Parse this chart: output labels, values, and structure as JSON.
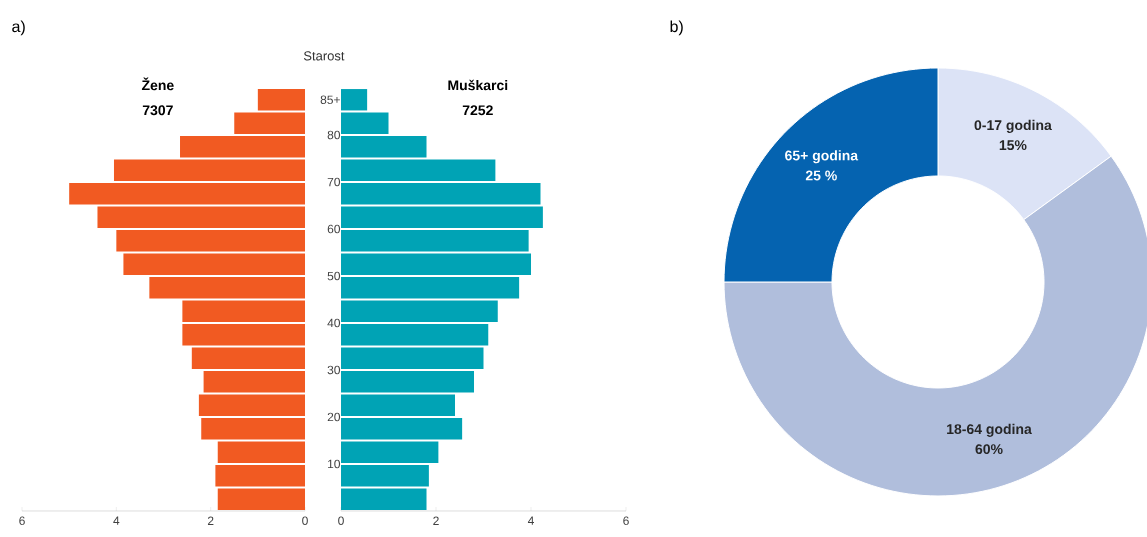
{
  "chart_data": [
    {
      "type": "bar",
      "orientation": "horizontal",
      "title": "a)",
      "x": [
        2.5,
        7.5,
        12.5,
        17.5,
        22.5,
        27.5,
        32.5,
        37.5,
        42.5,
        47.5,
        52.5,
        57.5,
        62.5,
        67.5,
        72.5,
        77.5,
        82.5,
        87.5
      ],
      "series": [
        {
          "name": "Žene",
          "color": "#f15a22",
          "values": [
            1.85,
            1.9,
            1.85,
            2.2,
            2.25,
            2.15,
            2.4,
            2.6,
            2.6,
            3.3,
            3.85,
            4.0,
            4.4,
            5.0,
            4.05,
            2.65,
            1.5,
            1.0
          ]
        }
      ],
      "annotations": [
        "7307"
      ],
      "xlim": [
        6,
        0
      ],
      "xticks": [
        6,
        4,
        2,
        0
      ],
      "ylim": [
        0,
        90
      ],
      "tick_labels": "x"
    },
    {
      "type": "bar",
      "orientation": "horizontal",
      "ylabel": "Starost",
      "x": [
        2.5,
        7.5,
        12.5,
        17.5,
        22.5,
        27.5,
        32.5,
        37.5,
        42.5,
        47.5,
        52.5,
        57.5,
        62.5,
        67.5,
        72.5,
        77.5,
        82.5,
        87.5
      ],
      "series": [
        {
          "name": "Muškarci",
          "color": "#00a3b5",
          "values": [
            1.8,
            1.85,
            2.05,
            2.55,
            2.4,
            2.8,
            3.0,
            3.1,
            3.3,
            3.75,
            4.0,
            3.95,
            4.25,
            4.2,
            3.25,
            1.8,
            1.0,
            0.55
          ]
        }
      ],
      "annotations": [
        "7252"
      ],
      "xlim": [
        0,
        6
      ],
      "xticks": [
        0,
        2,
        4,
        6
      ],
      "ylim": [
        0,
        90
      ],
      "yticks": [
        10,
        20,
        30,
        40,
        50,
        60,
        70,
        80,
        {
          "value": 87.5,
          "label": "85+"
        }
      ]
    },
    {
      "type": "donut",
      "title": "b)",
      "categories": [
        "0-17 godina",
        "18-64 godina",
        "65+ godina"
      ],
      "values": [
        15,
        60,
        25
      ],
      "value_labels": [
        "15%",
        "60%",
        "25 %"
      ],
      "colors": [
        "#dce3f6",
        "#b0bedc",
        "#0563b0"
      ]
    }
  ]
}
